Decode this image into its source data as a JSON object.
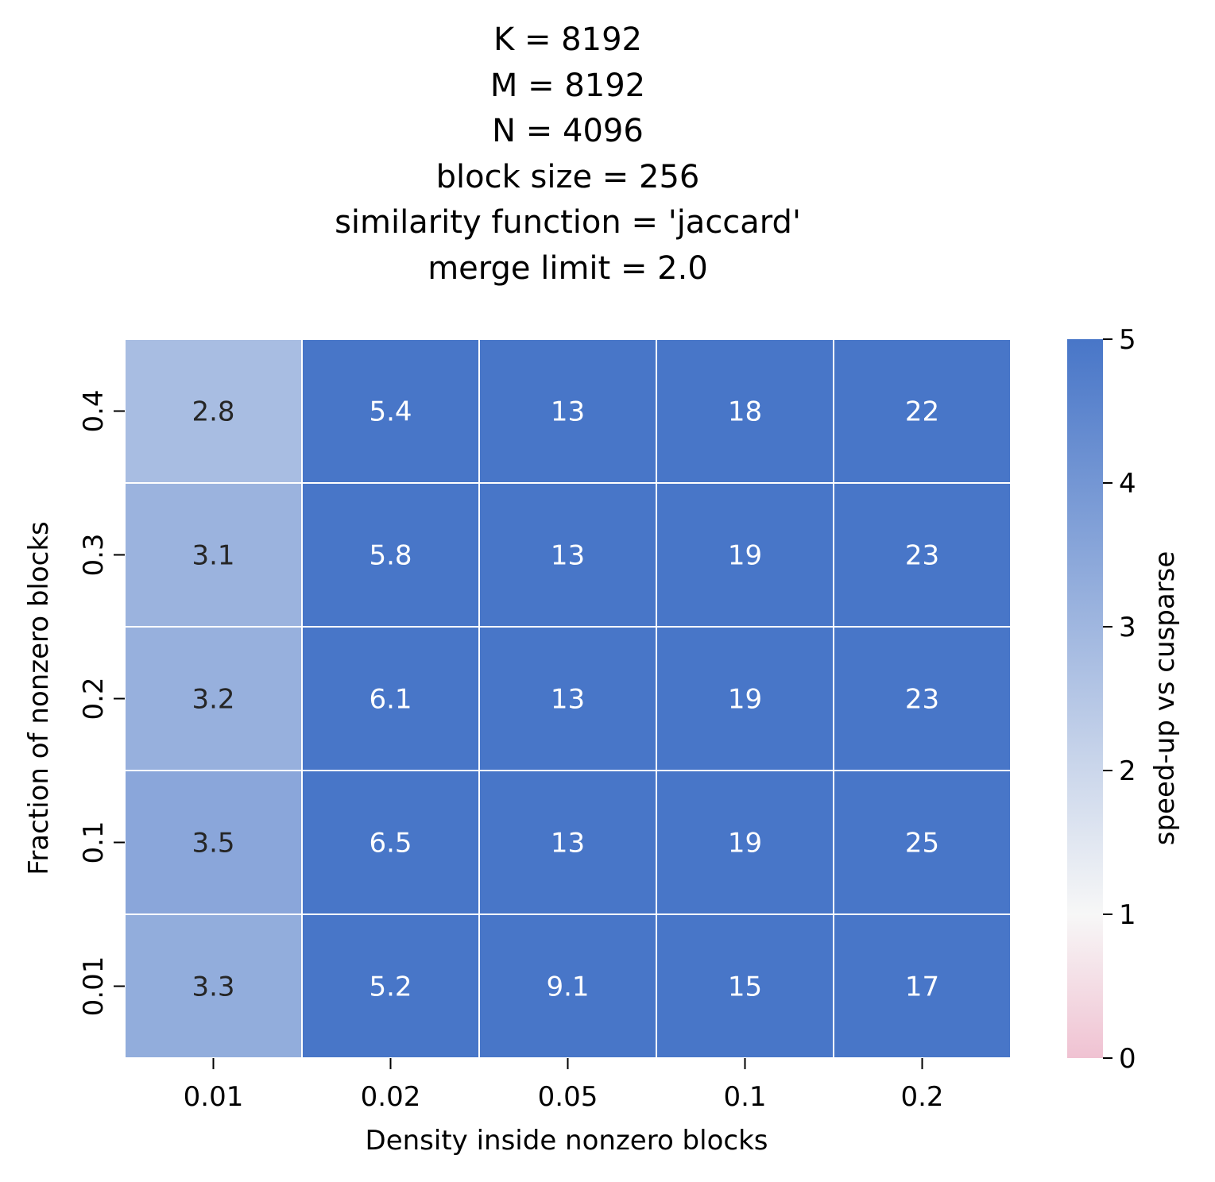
{
  "title_lines": [
    "K = 8192",
    "M = 8192",
    "N = 4096",
    "block size = 256",
    "similarity function = 'jaccard'",
    "merge limit = 2.0"
  ],
  "chart_data": {
    "type": "heatmap",
    "title": "K = 8192\nM = 8192\nN = 4096\nblock size = 256\nsimilarity function = 'jaccard'\nmerge limit = 2.0",
    "xlabel": "Density inside nonzero blocks",
    "ylabel": "Fraction of nonzero blocks",
    "x_categories": [
      "0.01",
      "0.02",
      "0.05",
      "0.1",
      "0.2"
    ],
    "y_categories": [
      "0.4",
      "0.3",
      "0.2",
      "0.1",
      "0.01"
    ],
    "values": [
      [
        2.8,
        5.4,
        13,
        18,
        22
      ],
      [
        3.1,
        5.8,
        13,
        19,
        23
      ],
      [
        3.2,
        6.1,
        13,
        19,
        23
      ],
      [
        3.5,
        6.5,
        13,
        19,
        25
      ],
      [
        3.3,
        5.2,
        9.1,
        15,
        17
      ]
    ],
    "value_labels": [
      [
        "2.8",
        "5.4",
        "13",
        "18",
        "22"
      ],
      [
        "3.1",
        "5.8",
        "13",
        "19",
        "23"
      ],
      [
        "3.2",
        "6.1",
        "13",
        "19",
        "23"
      ],
      [
        "3.5",
        "6.5",
        "13",
        "19",
        "25"
      ],
      [
        "3.3",
        "5.2",
        "9.1",
        "15",
        "17"
      ]
    ],
    "colorbar": {
      "label": "speed-up vs cusparse",
      "range": [
        0,
        5
      ],
      "ticks": [
        "0",
        "1",
        "2",
        "3",
        "4",
        "5"
      ],
      "colors": {
        "low": "#f0c2d2",
        "mid": "#f7f7f7",
        "high": "#4876c8"
      }
    },
    "colors": {
      "cell_border": "#ffffff",
      "annotation_dark": "#262626",
      "annotation_light": "#ffffff"
    }
  }
}
